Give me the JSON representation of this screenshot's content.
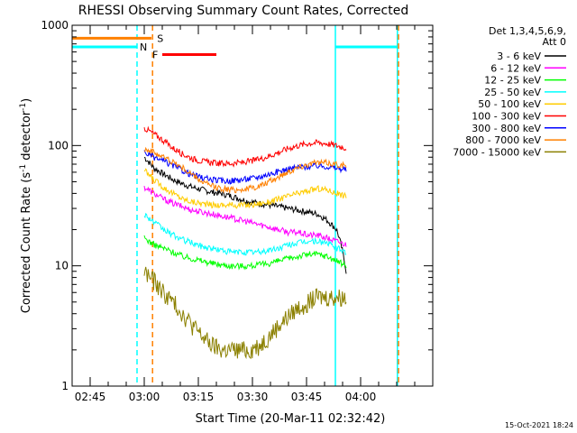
{
  "chart_data": {
    "type": "line",
    "title": "RHESSI Observing Summary Count Rates, Corrected",
    "xlabel": "Start Time (20-Mar-11 02:32:42)",
    "ylabel_main": "Corrected Count Rate (s",
    "ylabel_exp1": "-1",
    "ylabel_mid": " detector",
    "ylabel_exp2": "-1",
    "ylabel_end": ")",
    "yscale": "log",
    "ylim": [
      1,
      1000
    ],
    "xlim_min": [
      160,
      260
    ],
    "yticks": [
      {
        "v": 1,
        "label": "1"
      },
      {
        "v": 10,
        "label": "10"
      },
      {
        "v": 100,
        "label": "100"
      },
      {
        "v": 1000,
        "label": "1000"
      }
    ],
    "xticks": [
      {
        "v": 165,
        "label": "02:45"
      },
      {
        "v": 180,
        "label": "03:00"
      },
      {
        "v": 195,
        "label": "03:15"
      },
      {
        "v": 210,
        "label": "03:30"
      },
      {
        "v": 225,
        "label": "03:45"
      },
      {
        "v": 240,
        "label": "04:00"
      }
    ],
    "detector_info": "Det 1,3,4,5,6,9,",
    "atten_info": "Att 0",
    "timestamp": "15-Oct-2021 18:24",
    "flags": [
      {
        "label": "S",
        "color": "#ff8000",
        "y": 780,
        "x_end": 182
      },
      {
        "label": "N",
        "color": "#00ffff",
        "y": 660,
        "x_end": 178
      },
      {
        "label": "F",
        "color": "#ff0000",
        "y": 570,
        "x_start": 185,
        "x_end": 200
      }
    ],
    "boundaries": [
      {
        "x": 178,
        "color": "#00ffff",
        "style": "dashed"
      },
      {
        "x": 182.3,
        "color": "#ff8000",
        "style": "dashed"
      },
      {
        "x": 233,
        "color": "#00ffff",
        "style": "solid"
      },
      {
        "x": 250.2,
        "color": "#00ffff",
        "style": "solid"
      },
      {
        "x": 250.5,
        "color": "#ff8000",
        "style": "dashed"
      }
    ],
    "series": [
      {
        "name": "3 - 6 keV",
        "color": "#000000",
        "start": 180,
        "end": 236,
        "values": [
          80,
          65,
          58,
          52,
          48,
          45,
          43,
          41,
          40,
          38,
          36,
          34,
          33,
          32,
          31,
          30,
          29,
          28,
          27,
          24,
          20,
          9
        ]
      },
      {
        "name": "6 - 12 keV",
        "color": "#ff00ff",
        "start": 180,
        "end": 236,
        "values": [
          45,
          40,
          36,
          33,
          31,
          29,
          28,
          27,
          26,
          25,
          24,
          23,
          22,
          21,
          20,
          19,
          19,
          18,
          18,
          17,
          16,
          15
        ]
      },
      {
        "name": "12 - 25 keV",
        "color": "#00ff00",
        "start": 180,
        "end": 236,
        "values": [
          17,
          15,
          14,
          13,
          12,
          11.5,
          11,
          10.5,
          10.2,
          10,
          10,
          10,
          10.2,
          10.5,
          11,
          11.5,
          12,
          12.5,
          12.5,
          12,
          11,
          10
        ]
      },
      {
        "name": "25 - 50 keV",
        "color": "#00ffff",
        "start": 180,
        "end": 236,
        "values": [
          27,
          23,
          20,
          18,
          16.5,
          15.5,
          14.5,
          14,
          13.5,
          13,
          13,
          13,
          13,
          13.5,
          14,
          15,
          15.5,
          16,
          16,
          15.5,
          14,
          13
        ]
      },
      {
        "name": "50 - 100 keV",
        "color": "#ffcc00",
        "start": 180,
        "end": 236,
        "values": [
          62,
          52,
          45,
          40,
          36,
          34,
          33,
          32,
          32,
          32,
          32,
          32,
          33,
          34,
          36,
          38,
          40,
          42,
          44,
          43,
          40,
          38
        ]
      },
      {
        "name": "100 - 300 keV",
        "color": "#ff0000",
        "start": 180,
        "end": 236,
        "values": [
          140,
          125,
          110,
          95,
          85,
          78,
          74,
          72,
          71,
          71,
          72,
          74,
          77,
          82,
          88,
          95,
          100,
          104,
          106,
          104,
          100,
          95
        ]
      },
      {
        "name": "300 - 800 keV",
        "color": "#0000ff",
        "start": 180,
        "end": 236,
        "values": [
          88,
          80,
          74,
          68,
          62,
          57,
          54,
          52,
          51,
          51,
          52,
          53,
          55,
          58,
          61,
          64,
          66,
          67,
          68,
          67,
          65,
          63
        ]
      },
      {
        "name": "800 - 7000 keV",
        "color": "#ff8000",
        "start": 180,
        "end": 236,
        "values": [
          95,
          88,
          80,
          73,
          65,
          57,
          50,
          46,
          44,
          43,
          43,
          44,
          46,
          50,
          55,
          61,
          66,
          70,
          72,
          72,
          70,
          68
        ]
      },
      {
        "name": "7000 - 15000 keV",
        "color": "#8b8000",
        "start": 180,
        "end": 236,
        "values": [
          9,
          7.5,
          6,
          5,
          4,
          3.2,
          2.6,
          2.2,
          2,
          2,
          2,
          2,
          2.2,
          2.6,
          3.2,
          3.8,
          4.5,
          5,
          5.5,
          5.5,
          5.5,
          5.5
        ]
      }
    ]
  }
}
